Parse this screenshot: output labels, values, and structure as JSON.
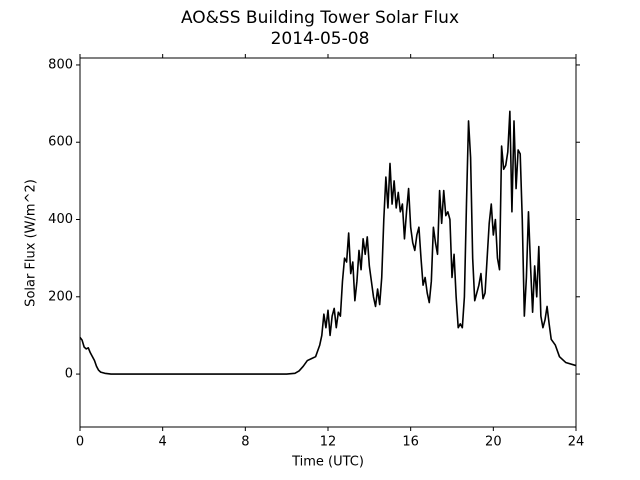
{
  "chart_data": {
    "type": "line",
    "title": "AO&SS Building Tower Solar Flux",
    "subtitle": "2014-05-08",
    "x_label": "Time (UTC)",
    "y_label": "Solar Flux (W/m^2)",
    "xlim": [
      0,
      24
    ],
    "xticks": [
      0,
      4,
      8,
      12,
      16,
      20,
      24
    ],
    "ylim": [
      -137,
      818
    ],
    "yticks": [
      0,
      200,
      400,
      600,
      800
    ],
    "series": [
      {
        "name": "Solar Flux",
        "color": "#000000",
        "x": [
          0,
          0.1,
          0.2,
          0.3,
          0.4,
          0.5,
          0.6,
          0.7,
          0.8,
          0.9,
          1.0,
          1.2,
          1.5,
          2,
          4,
          6,
          8,
          10,
          10.4,
          10.6,
          10.8,
          11.0,
          11.2,
          11.4,
          11.5,
          11.6,
          11.7,
          11.8,
          11.9,
          12.0,
          12.1,
          12.2,
          12.3,
          12.4,
          12.5,
          12.6,
          12.7,
          12.8,
          12.9,
          13.0,
          13.1,
          13.2,
          13.3,
          13.4,
          13.5,
          13.6,
          13.7,
          13.8,
          13.9,
          14.0,
          14.1,
          14.2,
          14.3,
          14.4,
          14.5,
          14.6,
          14.7,
          14.8,
          14.9,
          15.0,
          15.1,
          15.2,
          15.3,
          15.4,
          15.5,
          15.6,
          15.7,
          15.8,
          15.9,
          16.0,
          16.1,
          16.2,
          16.3,
          16.4,
          16.5,
          16.6,
          16.7,
          16.8,
          16.9,
          17.0,
          17.1,
          17.2,
          17.3,
          17.4,
          17.5,
          17.6,
          17.7,
          17.8,
          17.9,
          18.0,
          18.1,
          18.2,
          18.3,
          18.4,
          18.5,
          18.6,
          18.7,
          18.8,
          18.9,
          19.0,
          19.1,
          19.2,
          19.3,
          19.4,
          19.5,
          19.6,
          19.7,
          19.8,
          19.9,
          20.0,
          20.1,
          20.2,
          20.3,
          20.4,
          20.5,
          20.6,
          20.7,
          20.8,
          20.9,
          21.0,
          21.1,
          21.2,
          21.3,
          21.4,
          21.5,
          21.6,
          21.7,
          21.8,
          21.9,
          22.0,
          22.1,
          22.2,
          22.3,
          22.4,
          22.5,
          22.6,
          22.7,
          22.8,
          23.0,
          23.2,
          23.5,
          24
        ],
        "values": [
          95,
          88,
          70,
          65,
          68,
          55,
          45,
          35,
          20,
          10,
          5,
          2,
          0,
          0,
          0,
          0,
          0,
          0,
          2,
          8,
          20,
          35,
          40,
          45,
          60,
          75,
          100,
          155,
          120,
          165,
          100,
          150,
          170,
          120,
          160,
          150,
          240,
          300,
          290,
          365,
          260,
          290,
          190,
          240,
          320,
          270,
          350,
          310,
          355,
          280,
          240,
          200,
          175,
          220,
          180,
          250,
          400,
          510,
          430,
          545,
          440,
          500,
          430,
          470,
          420,
          440,
          350,
          420,
          480,
          380,
          340,
          320,
          360,
          380,
          300,
          230,
          250,
          210,
          185,
          240,
          380,
          340,
          310,
          475,
          390,
          475,
          410,
          420,
          400,
          250,
          310,
          200,
          120,
          130,
          120,
          200,
          440,
          655,
          560,
          300,
          190,
          210,
          230,
          260,
          195,
          210,
          300,
          390,
          440,
          360,
          400,
          300,
          270,
          590,
          530,
          540,
          575,
          680,
          420,
          655,
          480,
          580,
          570,
          400,
          150,
          250,
          420,
          280,
          160,
          280,
          200,
          330,
          150,
          120,
          140,
          175,
          130,
          90,
          75,
          45,
          30,
          22
        ]
      }
    ]
  }
}
